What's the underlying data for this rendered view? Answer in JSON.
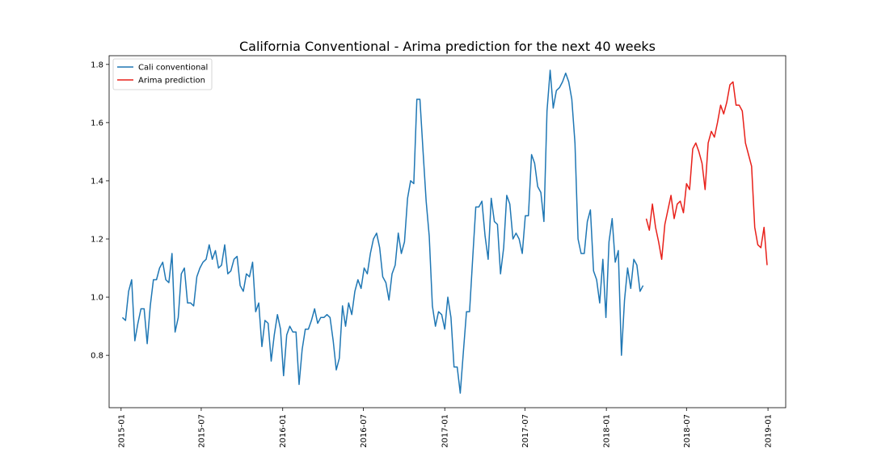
{
  "chart_data": {
    "type": "line",
    "title": "California Conventional - Arima prediction for the next 40 weeks",
    "xlabel": "",
    "ylabel": "",
    "x_range": [
      "2014-12-05",
      "2019-02-10"
    ],
    "ylim": [
      0.62,
      1.83
    ],
    "x_ticks": [
      "2015-01",
      "2015-07",
      "2016-01",
      "2016-07",
      "2017-01",
      "2017-07",
      "2018-01",
      "2018-07",
      "2019-01"
    ],
    "y_ticks": [
      "0.8",
      "1.0",
      "1.2",
      "1.4",
      "1.6",
      "1.8"
    ],
    "grid": false,
    "legend_position": "top-left",
    "series": [
      {
        "name": "Cali conventional",
        "color": "#1f77b4",
        "x": [
          "2015-01-04",
          "2015-01-11",
          "2015-01-18",
          "2015-01-25",
          "2015-02-01",
          "2015-02-08",
          "2015-02-15",
          "2015-02-22",
          "2015-03-01",
          "2015-03-08",
          "2015-03-15",
          "2015-03-22",
          "2015-03-29",
          "2015-04-05",
          "2015-04-12",
          "2015-04-19",
          "2015-04-26",
          "2015-05-03",
          "2015-05-10",
          "2015-05-17",
          "2015-05-24",
          "2015-05-31",
          "2015-06-07",
          "2015-06-14",
          "2015-06-21",
          "2015-06-28",
          "2015-07-05",
          "2015-07-12",
          "2015-07-19",
          "2015-07-26",
          "2015-08-02",
          "2015-08-09",
          "2015-08-16",
          "2015-08-23",
          "2015-08-30",
          "2015-09-06",
          "2015-09-13",
          "2015-09-20",
          "2015-09-27",
          "2015-10-04",
          "2015-10-11",
          "2015-10-18",
          "2015-10-25",
          "2015-11-01",
          "2015-11-08",
          "2015-11-15",
          "2015-11-22",
          "2015-11-29",
          "2015-12-06",
          "2015-12-13",
          "2015-12-20",
          "2015-12-27",
          "2016-01-03",
          "2016-01-10",
          "2016-01-17",
          "2016-01-24",
          "2016-01-31",
          "2016-02-07",
          "2016-02-14",
          "2016-02-21",
          "2016-02-28",
          "2016-03-06",
          "2016-03-13",
          "2016-03-20",
          "2016-03-27",
          "2016-04-03",
          "2016-04-10",
          "2016-04-17",
          "2016-04-24",
          "2016-05-01",
          "2016-05-08",
          "2016-05-15",
          "2016-05-22",
          "2016-05-29",
          "2016-06-05",
          "2016-06-12",
          "2016-06-19",
          "2016-06-26",
          "2016-07-03",
          "2016-07-10",
          "2016-07-17",
          "2016-07-24",
          "2016-07-31",
          "2016-08-07",
          "2016-08-14",
          "2016-08-21",
          "2016-08-28",
          "2016-09-04",
          "2016-09-11",
          "2016-09-18",
          "2016-09-25",
          "2016-10-02",
          "2016-10-09",
          "2016-10-16",
          "2016-10-23",
          "2016-10-30",
          "2016-11-06",
          "2016-11-13",
          "2016-11-20",
          "2016-11-27",
          "2016-12-04",
          "2016-12-11",
          "2016-12-18",
          "2016-12-25",
          "2017-01-01",
          "2017-01-08",
          "2017-01-15",
          "2017-01-22",
          "2017-01-29",
          "2017-02-05",
          "2017-02-12",
          "2017-02-19",
          "2017-02-26",
          "2017-03-05",
          "2017-03-12",
          "2017-03-19",
          "2017-03-26",
          "2017-04-02",
          "2017-04-09",
          "2017-04-16",
          "2017-04-23",
          "2017-04-30",
          "2017-05-07",
          "2017-05-14",
          "2017-05-21",
          "2017-05-28",
          "2017-06-04",
          "2017-06-11",
          "2017-06-18",
          "2017-06-25",
          "2017-07-02",
          "2017-07-09",
          "2017-07-16",
          "2017-07-23",
          "2017-07-30",
          "2017-08-06",
          "2017-08-13",
          "2017-08-20",
          "2017-08-27",
          "2017-09-03",
          "2017-09-10",
          "2017-09-17",
          "2017-09-24",
          "2017-10-01",
          "2017-10-08",
          "2017-10-15",
          "2017-10-22",
          "2017-10-29",
          "2017-11-05",
          "2017-11-12",
          "2017-11-19",
          "2017-11-26",
          "2017-12-03",
          "2017-12-10",
          "2017-12-17",
          "2017-12-24",
          "2017-12-31",
          "2018-01-07",
          "2018-01-14",
          "2018-01-21",
          "2018-01-28",
          "2018-02-04",
          "2018-02-11",
          "2018-02-18",
          "2018-02-25",
          "2018-03-04",
          "2018-03-11",
          "2018-03-18",
          "2018-03-25"
        ],
        "values": [
          0.93,
          0.92,
          1.02,
          1.06,
          0.85,
          0.91,
          0.96,
          0.96,
          0.84,
          0.97,
          1.06,
          1.06,
          1.1,
          1.12,
          1.06,
          1.05,
          1.15,
          0.88,
          0.93,
          1.08,
          1.1,
          0.98,
          0.98,
          0.97,
          1.07,
          1.1,
          1.12,
          1.13,
          1.18,
          1.13,
          1.16,
          1.1,
          1.11,
          1.18,
          1.08,
          1.09,
          1.13,
          1.14,
          1.04,
          1.02,
          1.08,
          1.07,
          1.12,
          0.95,
          0.98,
          0.83,
          0.92,
          0.91,
          0.78,
          0.87,
          0.94,
          0.89,
          0.73,
          0.87,
          0.9,
          0.88,
          0.88,
          0.7,
          0.82,
          0.89,
          0.89,
          0.92,
          0.96,
          0.91,
          0.93,
          0.93,
          0.94,
          0.93,
          0.85,
          0.75,
          0.79,
          0.97,
          0.9,
          0.98,
          0.94,
          1.02,
          1.06,
          1.03,
          1.1,
          1.08,
          1.15,
          1.2,
          1.22,
          1.17,
          1.07,
          1.05,
          0.99,
          1.08,
          1.11,
          1.22,
          1.15,
          1.19,
          1.34,
          1.4,
          1.39,
          1.68,
          1.68,
          1.5,
          1.33,
          1.21,
          0.97,
          0.9,
          0.95,
          0.94,
          0.89,
          1.0,
          0.93,
          0.76,
          0.76,
          0.67,
          0.81,
          0.95,
          0.95,
          1.13,
          1.31,
          1.31,
          1.33,
          1.21,
          1.13,
          1.34,
          1.26,
          1.25,
          1.08,
          1.17,
          1.35,
          1.32,
          1.2,
          1.22,
          1.2,
          1.15,
          1.28,
          1.28,
          1.49,
          1.46,
          1.38,
          1.36,
          1.26,
          1.64,
          1.78,
          1.65,
          1.71,
          1.72,
          1.74,
          1.77,
          1.74,
          1.68,
          1.53,
          1.2,
          1.15,
          1.15,
          1.26,
          1.3,
          1.09,
          1.06,
          0.98,
          1.13,
          0.93,
          1.19,
          1.27,
          1.12,
          1.16,
          0.8,
          0.99,
          1.1,
          1.03,
          1.13,
          1.11,
          1.02,
          1.04
        ]
      },
      {
        "name": "Arima prediction",
        "color": "#e8201a",
        "x": [
          "2018-04-01",
          "2018-04-08",
          "2018-04-15",
          "2018-04-22",
          "2018-04-29",
          "2018-05-06",
          "2018-05-13",
          "2018-05-20",
          "2018-05-27",
          "2018-06-03",
          "2018-06-10",
          "2018-06-17",
          "2018-06-24",
          "2018-07-01",
          "2018-07-08",
          "2018-07-15",
          "2018-07-22",
          "2018-07-29",
          "2018-08-05",
          "2018-08-12",
          "2018-08-19",
          "2018-08-26",
          "2018-09-02",
          "2018-09-09",
          "2018-09-16",
          "2018-09-23",
          "2018-09-30",
          "2018-10-07",
          "2018-10-14",
          "2018-10-21",
          "2018-10-28",
          "2018-11-04",
          "2018-11-11",
          "2018-11-18",
          "2018-11-25",
          "2018-12-02",
          "2018-12-09",
          "2018-12-16",
          "2018-12-23",
          "2018-12-30"
        ],
        "values": [
          1.27,
          1.23,
          1.32,
          1.24,
          1.19,
          1.13,
          1.25,
          1.3,
          1.35,
          1.27,
          1.32,
          1.33,
          1.29,
          1.39,
          1.37,
          1.51,
          1.53,
          1.5,
          1.46,
          1.37,
          1.53,
          1.57,
          1.55,
          1.6,
          1.66,
          1.63,
          1.67,
          1.73,
          1.74,
          1.66,
          1.66,
          1.64,
          1.53,
          1.49,
          1.45,
          1.24,
          1.18,
          1.17,
          1.24,
          1.11
        ]
      }
    ]
  }
}
